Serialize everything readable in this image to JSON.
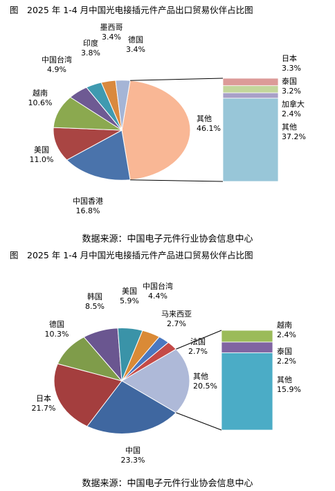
{
  "chart_data": [
    {
      "type": "pie",
      "title": "图　2025 年 1-4 月中国光电接插元件产品出口贸易伙伴占比图",
      "source": "数据来源：中国电子元件行业协会信息中心",
      "unit": "%",
      "slices": [
        {
          "label": "其他",
          "value": 46.1,
          "color": "#F9B795"
        },
        {
          "label": "中国香港",
          "value": 16.8,
          "color": "#4A73AB"
        },
        {
          "label": "美国",
          "value": 11.0,
          "color": "#A94543"
        },
        {
          "label": "越南",
          "value": 10.6,
          "color": "#8BA94F"
        },
        {
          "label": "中国台湾",
          "value": 4.9,
          "color": "#6E5A93"
        },
        {
          "label": "印度",
          "value": 3.8,
          "color": "#3F9AB0"
        },
        {
          "label": "墨西哥",
          "value": 3.4,
          "color": "#D9893E"
        },
        {
          "label": "德国",
          "value": 3.4,
          "color": "#A5B5D6"
        }
      ],
      "breakdown_of": "其他",
      "breakdown": [
        {
          "label": "其他",
          "value": 37.2,
          "color": "#98C6D8"
        },
        {
          "label": "加拿大",
          "value": 2.4,
          "color": "#A8A0C8"
        },
        {
          "label": "泰国",
          "value": 3.2,
          "color": "#C3D69B"
        },
        {
          "label": "日本",
          "value": 3.3,
          "color": "#DC9A98"
        }
      ]
    },
    {
      "type": "pie",
      "title": "图　2025 年 1-4 月中国光电接插元件产品进口贸易伙伴占比图",
      "source": "数据来源：中国电子元件行业协会信息中心",
      "unit": "%",
      "slices": [
        {
          "label": "其他",
          "value": 20.5,
          "color": "#AEB9D8"
        },
        {
          "label": "中国",
          "value": 23.3,
          "color": "#3F67A0"
        },
        {
          "label": "日本",
          "value": 21.7,
          "color": "#A43E3E"
        },
        {
          "label": "德国",
          "value": 10.3,
          "color": "#7F9C4A"
        },
        {
          "label": "韩国",
          "value": 8.5,
          "color": "#6A5690"
        },
        {
          "label": "美国",
          "value": 5.9,
          "color": "#3A93A8"
        },
        {
          "label": "中国台湾",
          "value": 4.4,
          "color": "#DA8A36"
        },
        {
          "label": "马来西亚",
          "value": 2.7,
          "color": "#4B78C0"
        },
        {
          "label": "法国",
          "value": 2.7,
          "color": "#C44A47"
        }
      ],
      "breakdown_of": "其他",
      "breakdown": [
        {
          "label": "其他",
          "value": 15.9,
          "color": "#4BACC6"
        },
        {
          "label": "泰国",
          "value": 2.2,
          "color": "#8064A2"
        },
        {
          "label": "越南",
          "value": 2.4,
          "color": "#9BBB59"
        }
      ]
    }
  ]
}
